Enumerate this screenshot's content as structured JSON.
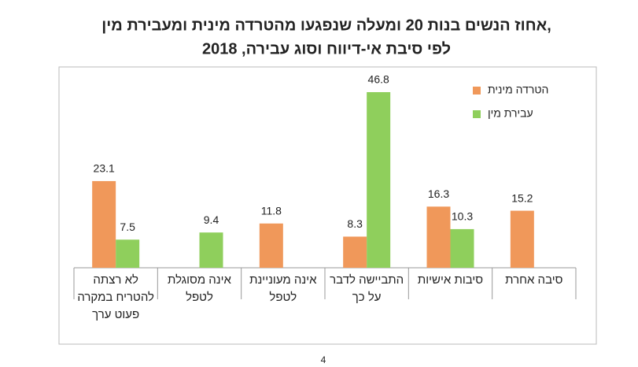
{
  "chart_data": {
    "type": "bar",
    "title": [
      "אחוז הנשים בנות 20 ומעלה שנפגעו מהטרדה מינית ומעבירת מין,",
      "לפי סיבת אי-דיווח וסוג עבירה, 2018"
    ],
    "categories": [
      [
        "לא רצתה",
        "להטריח במקרה",
        "פעוט ערך"
      ],
      [
        "אינה מסוגלת",
        "לטפל"
      ],
      [
        "אינה מעוניינת",
        "לטפל"
      ],
      [
        "התביישה לדבר",
        "על כך"
      ],
      [
        "סיבות אישיות"
      ],
      [
        "סיבה אחרת"
      ]
    ],
    "series": [
      {
        "name": "הטרדה מינית",
        "color": "#f0985a",
        "values": [
          23.1,
          null,
          11.8,
          8.3,
          16.3,
          15.2
        ]
      },
      {
        "name": "עבירת מין",
        "color": "#8fcf5c",
        "values": [
          7.5,
          9.4,
          null,
          46.8,
          10.3,
          null
        ]
      }
    ],
    "legend": "top-right"
  },
  "page_number": "4"
}
